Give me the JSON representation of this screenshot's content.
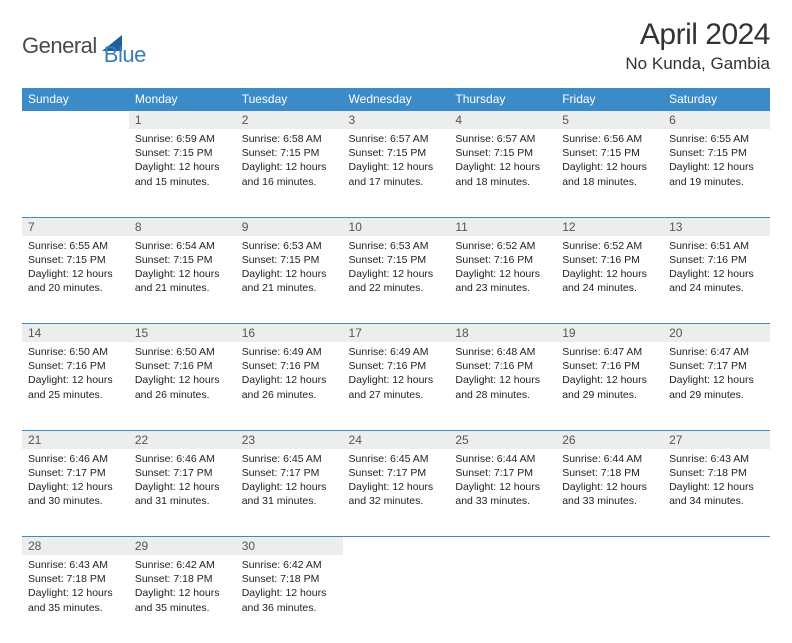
{
  "logo": {
    "part1": "General",
    "part2": "Blue",
    "brand_color": "#3b7bbf",
    "accent_color": "#1e5f9e"
  },
  "title": "April 2024",
  "location": "No Kunda, Gambia",
  "header_bg": "#3b8bc9",
  "daynum_bg": "#eceded",
  "day_headers": [
    "Sunday",
    "Monday",
    "Tuesday",
    "Wednesday",
    "Thursday",
    "Friday",
    "Saturday"
  ],
  "weeks": [
    {
      "nums": [
        "",
        "1",
        "2",
        "3",
        "4",
        "5",
        "6"
      ],
      "cells": [
        null,
        {
          "sr": "6:59 AM",
          "ss": "7:15 PM",
          "dl": "12 hours and 15 minutes."
        },
        {
          "sr": "6:58 AM",
          "ss": "7:15 PM",
          "dl": "12 hours and 16 minutes."
        },
        {
          "sr": "6:57 AM",
          "ss": "7:15 PM",
          "dl": "12 hours and 17 minutes."
        },
        {
          "sr": "6:57 AM",
          "ss": "7:15 PM",
          "dl": "12 hours and 18 minutes."
        },
        {
          "sr": "6:56 AM",
          "ss": "7:15 PM",
          "dl": "12 hours and 18 minutes."
        },
        {
          "sr": "6:55 AM",
          "ss": "7:15 PM",
          "dl": "12 hours and 19 minutes."
        }
      ]
    },
    {
      "nums": [
        "7",
        "8",
        "9",
        "10",
        "11",
        "12",
        "13"
      ],
      "cells": [
        {
          "sr": "6:55 AM",
          "ss": "7:15 PM",
          "dl": "12 hours and 20 minutes."
        },
        {
          "sr": "6:54 AM",
          "ss": "7:15 PM",
          "dl": "12 hours and 21 minutes."
        },
        {
          "sr": "6:53 AM",
          "ss": "7:15 PM",
          "dl": "12 hours and 21 minutes."
        },
        {
          "sr": "6:53 AM",
          "ss": "7:15 PM",
          "dl": "12 hours and 22 minutes."
        },
        {
          "sr": "6:52 AM",
          "ss": "7:16 PM",
          "dl": "12 hours and 23 minutes."
        },
        {
          "sr": "6:52 AM",
          "ss": "7:16 PM",
          "dl": "12 hours and 24 minutes."
        },
        {
          "sr": "6:51 AM",
          "ss": "7:16 PM",
          "dl": "12 hours and 24 minutes."
        }
      ]
    },
    {
      "nums": [
        "14",
        "15",
        "16",
        "17",
        "18",
        "19",
        "20"
      ],
      "cells": [
        {
          "sr": "6:50 AM",
          "ss": "7:16 PM",
          "dl": "12 hours and 25 minutes."
        },
        {
          "sr": "6:50 AM",
          "ss": "7:16 PM",
          "dl": "12 hours and 26 minutes."
        },
        {
          "sr": "6:49 AM",
          "ss": "7:16 PM",
          "dl": "12 hours and 26 minutes."
        },
        {
          "sr": "6:49 AM",
          "ss": "7:16 PM",
          "dl": "12 hours and 27 minutes."
        },
        {
          "sr": "6:48 AM",
          "ss": "7:16 PM",
          "dl": "12 hours and 28 minutes."
        },
        {
          "sr": "6:47 AM",
          "ss": "7:16 PM",
          "dl": "12 hours and 29 minutes."
        },
        {
          "sr": "6:47 AM",
          "ss": "7:17 PM",
          "dl": "12 hours and 29 minutes."
        }
      ]
    },
    {
      "nums": [
        "21",
        "22",
        "23",
        "24",
        "25",
        "26",
        "27"
      ],
      "cells": [
        {
          "sr": "6:46 AM",
          "ss": "7:17 PM",
          "dl": "12 hours and 30 minutes."
        },
        {
          "sr": "6:46 AM",
          "ss": "7:17 PM",
          "dl": "12 hours and 31 minutes."
        },
        {
          "sr": "6:45 AM",
          "ss": "7:17 PM",
          "dl": "12 hours and 31 minutes."
        },
        {
          "sr": "6:45 AM",
          "ss": "7:17 PM",
          "dl": "12 hours and 32 minutes."
        },
        {
          "sr": "6:44 AM",
          "ss": "7:17 PM",
          "dl": "12 hours and 33 minutes."
        },
        {
          "sr": "6:44 AM",
          "ss": "7:18 PM",
          "dl": "12 hours and 33 minutes."
        },
        {
          "sr": "6:43 AM",
          "ss": "7:18 PM",
          "dl": "12 hours and 34 minutes."
        }
      ]
    },
    {
      "nums": [
        "28",
        "29",
        "30",
        "",
        "",
        "",
        ""
      ],
      "cells": [
        {
          "sr": "6:43 AM",
          "ss": "7:18 PM",
          "dl": "12 hours and 35 minutes."
        },
        {
          "sr": "6:42 AM",
          "ss": "7:18 PM",
          "dl": "12 hours and 35 minutes."
        },
        {
          "sr": "6:42 AM",
          "ss": "7:18 PM",
          "dl": "12 hours and 36 minutes."
        },
        null,
        null,
        null,
        null
      ]
    }
  ],
  "labels": {
    "sunrise": "Sunrise:",
    "sunset": "Sunset:",
    "daylight": "Daylight:"
  }
}
